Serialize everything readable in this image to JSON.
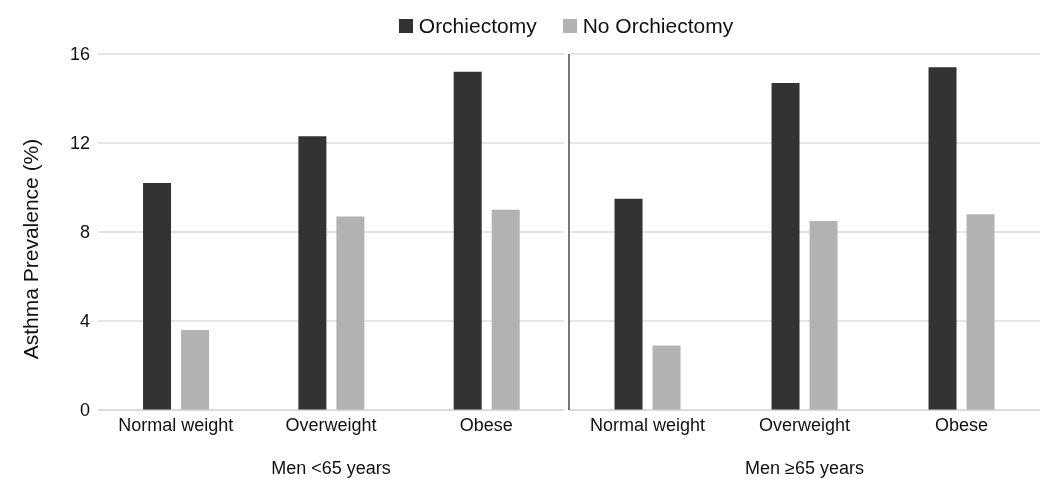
{
  "chart_data": [
    {
      "type": "bar",
      "xlabel": "Men <65 years",
      "ylabel": "Asthma Prevalence (%)",
      "categories": [
        "Normal weight",
        "Overweight",
        "Obese"
      ],
      "series": [
        {
          "name": "Orchiectomy",
          "color": "#333333",
          "values": [
            10.2,
            12.3,
            15.2
          ]
        },
        {
          "name": "No Orchiectomy",
          "color": "#b2b2b2",
          "values": [
            3.6,
            8.7,
            9.0
          ]
        }
      ],
      "ylim": [
        0,
        16
      ],
      "yticks": [
        0,
        4,
        8,
        12,
        16
      ],
      "grid": "y",
      "legend": "top"
    },
    {
      "type": "bar",
      "xlabel": "Men ≥65 years",
      "categories": [
        "Normal weight",
        "Overweight",
        "Obese"
      ],
      "series": [
        {
          "color": "#333333",
          "values": [
            9.5,
            14.7,
            15.4
          ]
        },
        {
          "color": "#b2b2b2",
          "values": [
            2.9,
            8.5,
            8.8
          ]
        }
      ],
      "ylim": [
        0,
        16
      ],
      "yticks": [
        0,
        4,
        8,
        12,
        16
      ],
      "grid": "y",
      "tick_labels": "x"
    }
  ]
}
